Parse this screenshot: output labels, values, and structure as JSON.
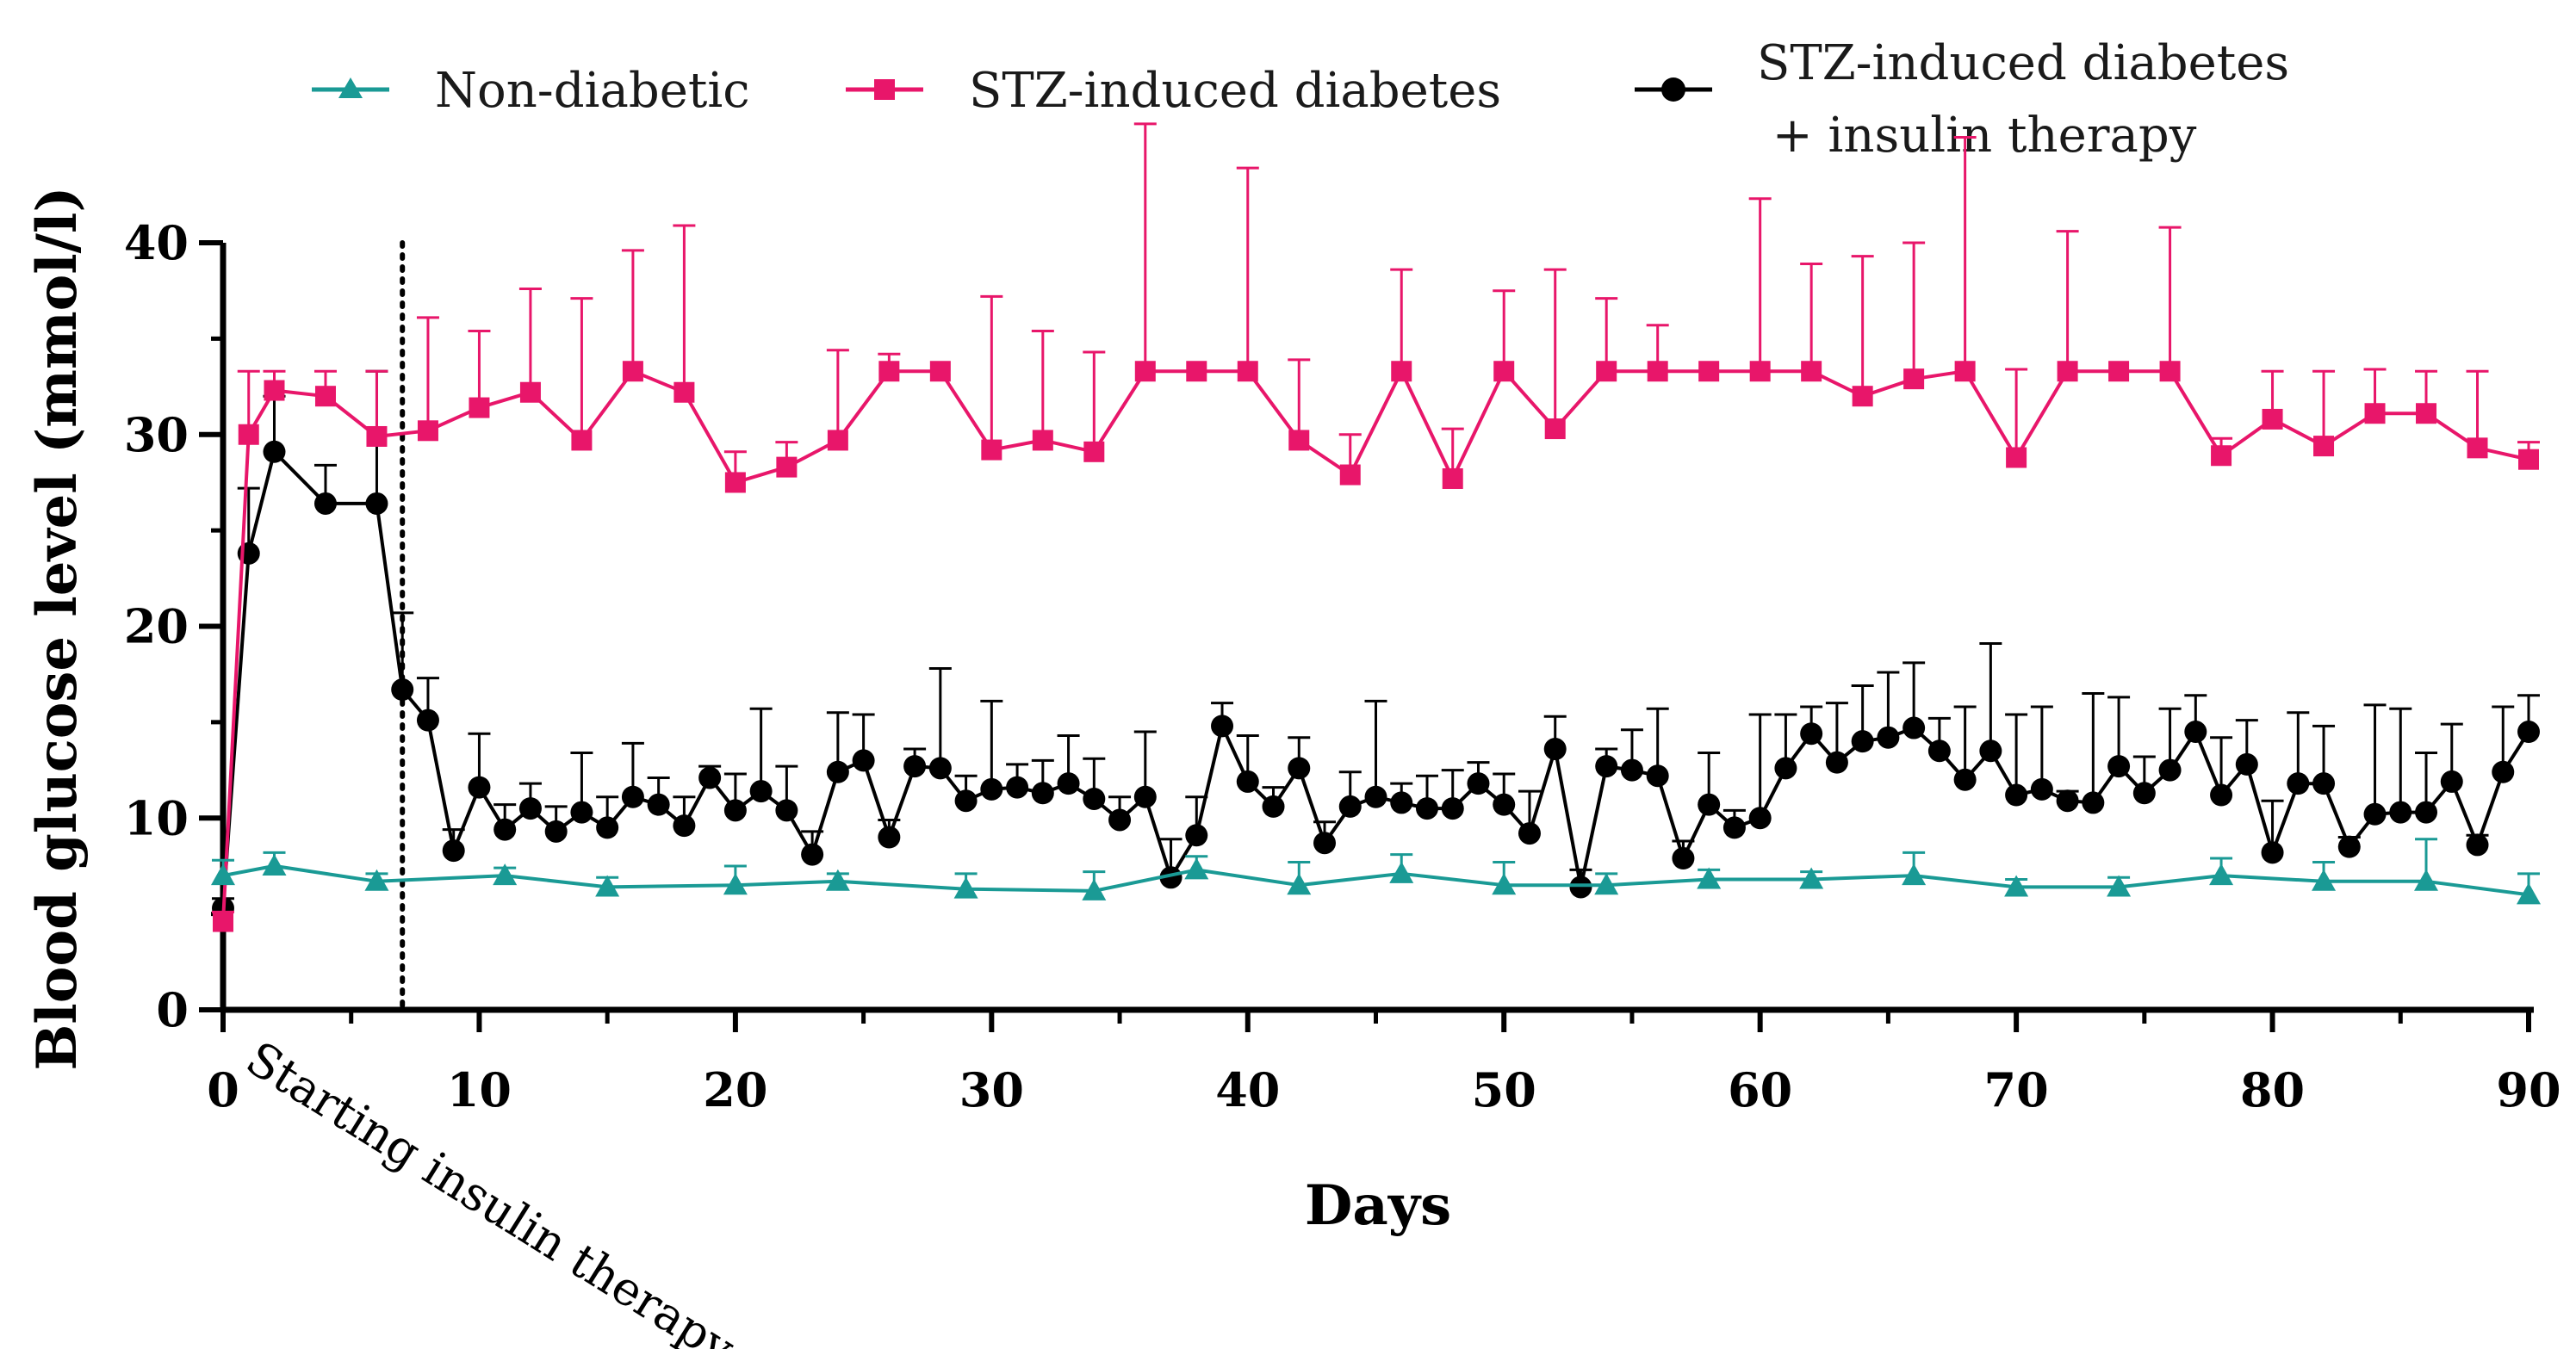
{
  "chart_data": {
    "type": "line",
    "title": "",
    "xlabel": "Days",
    "ylabel": "Blood glucose level (mmol/l)",
    "xlim": [
      0,
      90
    ],
    "ylim": [
      0,
      40
    ],
    "x_ticks": [
      0,
      10,
      20,
      30,
      40,
      50,
      60,
      70,
      80,
      90
    ],
    "y_ticks": [
      0,
      10,
      20,
      30,
      40
    ],
    "grid": false,
    "legend_position": "top",
    "annotation": {
      "text": "Starting insulin therapy",
      "x": 7
    },
    "series": [
      {
        "name": "Non-diabetic",
        "color": "#1a9a95",
        "marker": "triangle",
        "x": [
          0,
          2,
          6,
          11,
          15,
          20,
          24,
          29,
          34,
          38,
          42,
          46,
          50,
          54,
          58,
          62,
          66,
          70,
          74,
          78,
          82,
          86,
          90
        ],
        "y": [
          7.0,
          7.5,
          6.7,
          7.0,
          6.4,
          6.5,
          6.7,
          6.3,
          6.2,
          7.3,
          6.5,
          7.1,
          6.5,
          6.5,
          6.8,
          6.8,
          7.0,
          6.4,
          6.4,
          7.0,
          6.7,
          6.7,
          6.0
        ],
        "err": [
          0.8,
          0.7,
          0.4,
          0.4,
          0.5,
          1.0,
          0.4,
          0.8,
          1.0,
          0.7,
          1.2,
          1.0,
          1.2,
          0.6,
          0.5,
          0.4,
          1.2,
          0.4,
          0.5,
          0.9,
          1.0,
          2.2,
          1.1
        ]
      },
      {
        "name": "STZ-induced diabetes",
        "color": "#e8166a",
        "marker": "square",
        "x": [
          0,
          1,
          2,
          4,
          6,
          8,
          10,
          12,
          14,
          16,
          18,
          20,
          22,
          24,
          26,
          28,
          30,
          32,
          34,
          36,
          38,
          40,
          42,
          44,
          46,
          48,
          50,
          52,
          54,
          56,
          58,
          60,
          62,
          64,
          66,
          68,
          70,
          72,
          74,
          76,
          78,
          80,
          82,
          84,
          86,
          88,
          90
        ],
        "y": [
          4.6,
          30.0,
          32.3,
          32.0,
          29.9,
          30.2,
          31.4,
          32.2,
          29.7,
          33.3,
          32.2,
          27.5,
          28.3,
          29.7,
          33.3,
          33.3,
          29.2,
          29.7,
          29.1,
          33.3,
          33.3,
          33.3,
          29.7,
          27.9,
          33.3,
          27.7,
          33.3,
          30.3,
          33.3,
          33.3,
          33.3,
          33.3,
          33.3,
          32.0,
          32.9,
          33.3,
          28.8,
          33.3,
          33.3,
          33.3,
          28.9,
          30.8,
          29.4,
          31.1,
          31.1,
          29.3,
          28.7
        ],
        "err": [
          0.5,
          3.3,
          1.0,
          1.3,
          3.4,
          5.9,
          4.0,
          5.4,
          7.4,
          6.3,
          8.7,
          1.6,
          1.3,
          4.7,
          0.9,
          0.0,
          8.0,
          5.7,
          5.2,
          12.9,
          0.0,
          10.6,
          4.2,
          2.1,
          5.3,
          2.6,
          4.2,
          8.3,
          3.8,
          2.4,
          0.0,
          9.0,
          5.6,
          7.3,
          7.1,
          12.2,
          4.6,
          7.3,
          0.0,
          7.5,
          0.9,
          2.5,
          3.9,
          2.3,
          2.2,
          4.0,
          0.9
        ]
      },
      {
        "name": "STZ-induced diabetes\n + insulin therapy",
        "color": "#000000",
        "marker": "circle",
        "x": [
          0,
          1,
          2,
          4,
          6,
          7,
          8,
          9,
          10,
          11,
          12,
          13,
          14,
          15,
          16,
          17,
          18,
          19,
          20,
          21,
          22,
          23,
          24,
          25,
          26,
          27,
          28,
          29,
          30,
          31,
          32,
          33,
          34,
          35,
          36,
          37,
          38,
          39,
          40,
          41,
          42,
          43,
          44,
          45,
          46,
          47,
          48,
          49,
          50,
          51,
          52,
          53,
          54,
          55,
          56,
          57,
          58,
          59,
          60,
          61,
          62,
          63,
          64,
          65,
          66,
          67,
          68,
          69,
          70,
          71,
          72,
          73,
          74,
          75,
          76,
          77,
          78,
          79,
          80,
          81,
          82,
          83,
          84,
          85,
          86,
          87,
          88,
          89,
          90
        ],
        "y": [
          5.3,
          23.8,
          29.1,
          26.4,
          26.4,
          16.7,
          15.1,
          8.3,
          11.6,
          9.4,
          10.5,
          9.3,
          10.3,
          9.5,
          11.1,
          10.7,
          9.6,
          12.1,
          10.4,
          11.4,
          10.4,
          8.1,
          12.4,
          13.0,
          9.0,
          12.7,
          12.6,
          10.9,
          11.5,
          11.6,
          11.3,
          11.8,
          11.0,
          9.9,
          11.1,
          6.9,
          9.1,
          14.8,
          11.9,
          10.6,
          12.6,
          8.7,
          10.6,
          11.1,
          10.8,
          10.5,
          10.5,
          11.8,
          10.7,
          9.2,
          13.6,
          6.4,
          12.7,
          12.5,
          12.2,
          7.9,
          10.7,
          9.5,
          10.0,
          12.6,
          14.4,
          12.9,
          14.0,
          14.2,
          14.7,
          13.5,
          12.0,
          13.5,
          11.2,
          11.5,
          10.9,
          10.8,
          12.7,
          11.3,
          12.5,
          14.5,
          11.2,
          12.8,
          8.2,
          11.8,
          11.8,
          8.5,
          10.2,
          10.3,
          10.3,
          11.9,
          8.6,
          12.4,
          14.5
        ],
        "err": [
          0.5,
          3.4,
          2.9,
          2.0,
          6.9,
          4.0,
          2.2,
          1.1,
          2.8,
          1.3,
          1.3,
          1.3,
          3.1,
          1.6,
          2.8,
          1.4,
          1.5,
          0.6,
          1.9,
          4.3,
          2.3,
          1.2,
          3.1,
          2.4,
          0.9,
          0.9,
          5.2,
          1.3,
          4.6,
          1.2,
          1.7,
          2.5,
          2.1,
          1.2,
          3.4,
          2.0,
          2.0,
          1.2,
          2.4,
          1.0,
          1.6,
          1.1,
          1.8,
          5.0,
          1.0,
          1.7,
          2.0,
          1.1,
          1.6,
          2.2,
          1.7,
          0.9,
          0.9,
          2.1,
          3.5,
          0.9,
          2.7,
          0.9,
          5.4,
          2.8,
          1.4,
          3.1,
          2.9,
          3.4,
          3.4,
          1.7,
          3.8,
          5.6,
          4.2,
          4.3,
          0.5,
          5.7,
          3.6,
          1.9,
          3.2,
          1.9,
          3.0,
          2.3,
          2.7,
          3.7,
          3.0,
          0.5,
          5.7,
          5.4,
          3.1,
          3.0,
          0.5,
          3.4,
          1.9
        ]
      }
    ]
  }
}
